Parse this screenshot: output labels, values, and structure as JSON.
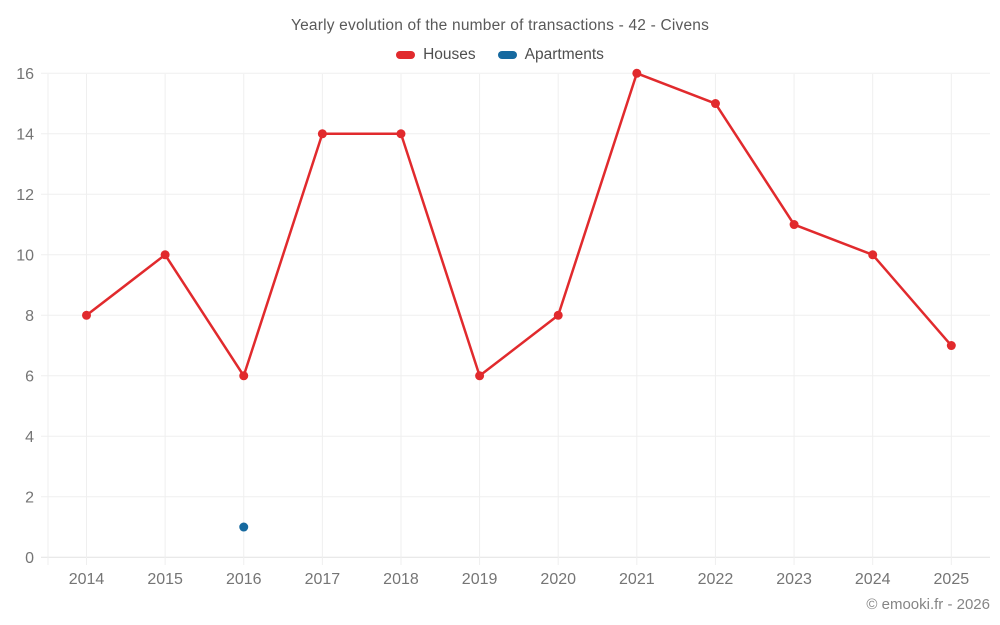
{
  "header": {
    "title": "Yearly evolution of the number of transactions - 42 - Civens"
  },
  "footer": {
    "credit": "© emooki.fr - 2026"
  },
  "colors": {
    "houses": "#e12a2d",
    "apartments": "#16699f",
    "grid": "#efefef",
    "axis": "#e2e2e2",
    "tick_text": "#757575"
  },
  "chart_data": {
    "type": "line",
    "title": "Yearly evolution of the number of transactions - 42 - Civens",
    "categories": [
      2014,
      2015,
      2016,
      2017,
      2018,
      2019,
      2020,
      2021,
      2022,
      2023,
      2024,
      2025
    ],
    "series": [
      {
        "name": "Houses",
        "color": "#e12a2d",
        "values": [
          8,
          10,
          6,
          14,
          14,
          6,
          8,
          16,
          15,
          11,
          10,
          7
        ]
      },
      {
        "name": "Apartments",
        "color": "#16699f",
        "values": [
          null,
          null,
          1,
          null,
          null,
          null,
          null,
          null,
          null,
          null,
          null,
          null
        ]
      }
    ],
    "xlabel": "",
    "ylabel": "",
    "ylim": [
      0,
      16
    ],
    "ytick_step": 2,
    "grid": true,
    "legend_position": "top"
  }
}
